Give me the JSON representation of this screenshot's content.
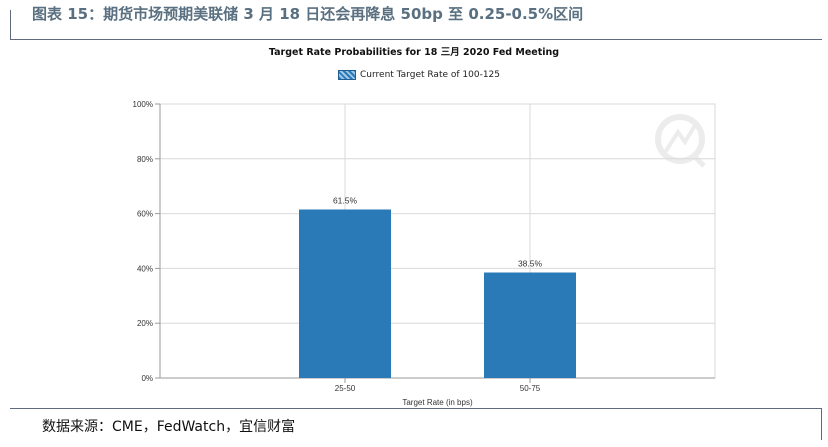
{
  "report": {
    "figure_title": "图表 15：期货市场预期美联储 3 月 18 日还会再降息 50bp 至 0.25-0.5%区间",
    "source_note": "数据来源：CME，FedWatch，宜信财富"
  },
  "chart_data": {
    "type": "bar",
    "title": "Target Rate Probabilities for 18 三月 2020 Fed Meeting",
    "legend": {
      "label": "Current Target Rate of 100-125",
      "placement": "top-center"
    },
    "categories": [
      "25-50",
      "50-75"
    ],
    "series": [
      {
        "values": [
          61.5,
          38.5
        ],
        "color": "#2a7ab8"
      }
    ],
    "data_labels": [
      "61.5%",
      "38.5%"
    ],
    "xlabel": "Target Rate (in bps)",
    "ylabel": "",
    "ylim": [
      0,
      100
    ],
    "y_ticks": [
      0,
      20,
      40,
      60,
      80,
      100
    ],
    "y_tick_labels": [
      "0%",
      "20%",
      "40%",
      "60%",
      "80%",
      "100%"
    ],
    "grid": true
  },
  "colors": {
    "bar": "#2a7ab8",
    "grid": "#d9d9d9",
    "axis": "#9a9a9a",
    "title_text": "#5a7080"
  }
}
